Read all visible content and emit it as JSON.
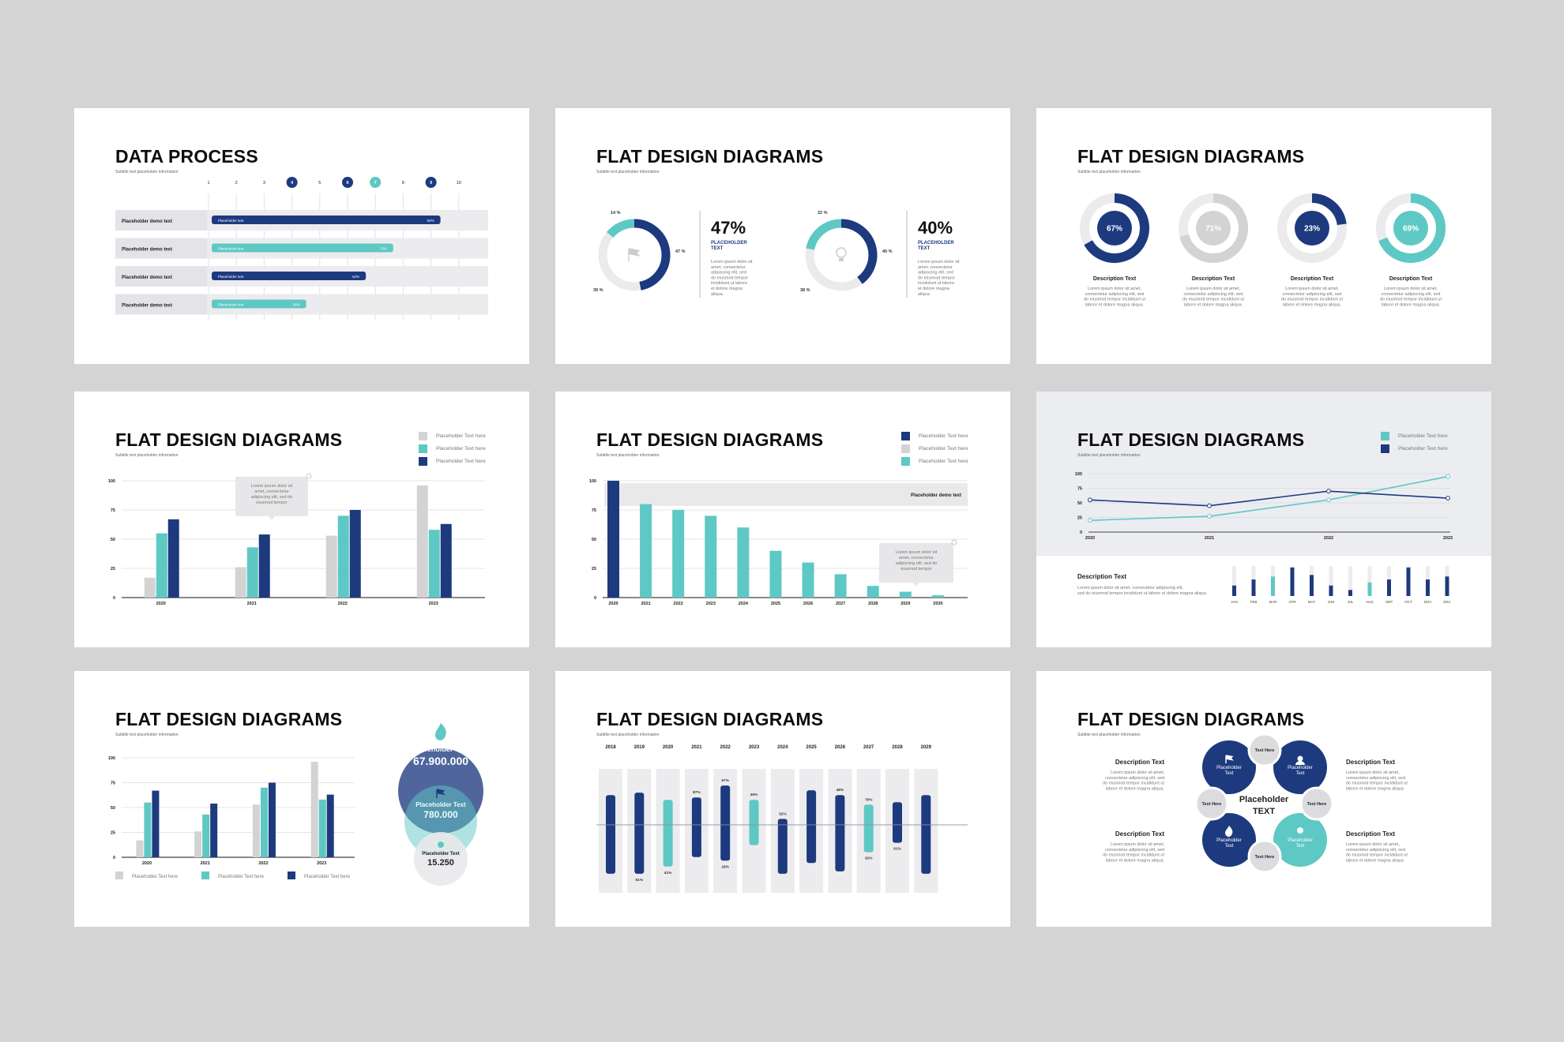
{
  "colors": {
    "navy": "#1d3a7f",
    "teal": "#5ec8c4",
    "gray": "#d3d3d3",
    "track": "#e7e8ec",
    "bg": "#d4d4d4"
  },
  "lorem_short": "Lorem ipsum dolor sit amet, consectetur adipiscing elit, sed do eiusmod tempor incididunt ut labore et dolore magna aliqua.",
  "slides": [
    {
      "title": "DATA PROCESS",
      "subtitle": "Subtitle text placeholder information",
      "steps": [
        "1",
        "2",
        "3",
        "4",
        "5",
        "6",
        "7",
        "8",
        "9",
        "10"
      ],
      "rows": [
        {
          "label": "Placeholder demo text",
          "bar_label": "Placeholder text",
          "pct": "92%",
          "value": 0.92,
          "color": "navy"
        },
        {
          "label": "Placeholder demo text",
          "bar_label": "Placeholder text",
          "pct": "73%",
          "value": 0.73,
          "color": "teal"
        },
        {
          "label": "Placeholder demo text",
          "bar_label": "Placeholder text",
          "pct": "62%",
          "value": 0.62,
          "color": "navy"
        },
        {
          "label": "Placeholder demo text",
          "bar_label": "Placeholder text",
          "pct": "38%",
          "value": 0.38,
          "color": "teal"
        }
      ]
    },
    {
      "title": "FLAT DESIGN DIAGRAMS",
      "subtitle": "Subtitle text placeholder information",
      "donuts": [
        {
          "big": "47%",
          "label1": "PLACEHOLDER",
          "label2": "TEXT",
          "seg_a": "14 %",
          "seg_b": "47 %",
          "seg_c": "39 %",
          "a": 0.14,
          "b": 0.47,
          "c": 0.39,
          "icon": "flag-icon"
        },
        {
          "big": "40%",
          "label1": "PLACEHOLDER",
          "label2": "TEXT",
          "seg_a": "22 %",
          "seg_b": "40 %",
          "seg_c": "38 %",
          "a": 0.22,
          "b": 0.4,
          "c": 0.38,
          "icon": "lightbulb-icon"
        }
      ],
      "desc": "Lorem ipsum dolor sit amet, consectetur adipiscing elit, sed do eiusmod tempor incididunt ut labore et dolore magna aliqua."
    },
    {
      "title": "FLAT DESIGN DIAGRAMS",
      "subtitle": "Subtitle text placeholder information",
      "rings": [
        {
          "pct": "67%",
          "value": 0.67,
          "color": "navy",
          "fill": "navy",
          "label": "Description Text"
        },
        {
          "pct": "71%",
          "value": 0.71,
          "color": "gray",
          "fill": "gray",
          "label": "Description Text"
        },
        {
          "pct": "23%",
          "value": 0.23,
          "color": "navy",
          "fill": "navy",
          "label": "Description Text"
        },
        {
          "pct": "69%",
          "value": 0.69,
          "color": "teal",
          "fill": "teal",
          "label": "Description Text"
        }
      ],
      "desc": "Lorem ipsum dolor sit amet, consectetur adipiscing elit, sed do eiusmod tempor incididunt ut labore et dolore magna aliqua."
    },
    {
      "title": "FLAT DESIGN DIAGRAMS",
      "subtitle": "Subtitle text placeholder information",
      "legend": [
        "Placeholder Text here",
        "Placeholder Text here",
        "Placeholder Text here"
      ],
      "tooltip": [
        "Lorem ipsum dolor sit",
        "amet, consectetur",
        "adipiscing elit, sed do",
        "eiusmod tempor"
      ]
    },
    {
      "title": "FLAT DESIGN DIAGRAMS",
      "subtitle": "Subtitle text placeholder information",
      "legend": [
        "Placeholder Text here",
        "Placeholder Text here",
        "Placeholder Text here"
      ],
      "band_label": "Placeholder demo text",
      "tooltip": [
        "Lorem ipsum dolor sit",
        "amet, consectetur",
        "adipiscing elit, sed do",
        "eiusmod tempor"
      ]
    },
    {
      "title": "FLAT DESIGN DIAGRAMS",
      "subtitle": "Subtitle text placeholder information",
      "legend": [
        "Placeholder Text here",
        "Placeholder Text here"
      ],
      "desc_title": "Description Text",
      "desc": [
        "Lorem ipsum dolor sit amet, consectetur adipiscing elit,",
        "sed do eiusmod tempor incididunt ut labore et dolore magna aliqua."
      ]
    },
    {
      "title": "FLAT DESIGN DIAGRAMS",
      "subtitle": "Subtitle text placeholder information",
      "legend": [
        "Placeholder Text here",
        "Placeholder Text here",
        "Placeholder Text here"
      ],
      "circles": [
        {
          "label": "Placeholder Text",
          "value": "67.900.000"
        },
        {
          "label": "Placeholder Text",
          "value": "780.000"
        },
        {
          "label": "Placeholder Text",
          "value": "15.250"
        }
      ]
    },
    {
      "title": "FLAT DESIGN DIAGRAMS",
      "subtitle": "Subtitle text placeholder information"
    },
    {
      "title": "FLAT DESIGN DIAGRAMS",
      "subtitle": "Subtitle text placeholder information",
      "center1": "Placeholder",
      "center2": "TEXT",
      "desc_title": "Description Text",
      "desc": [
        "Lorem ipsum dolor sit amet,",
        "consectetur adipiscing elit, sed",
        "do eiusmod tempor incididunt ut",
        "labore et dolore magna aliqua."
      ],
      "node_label": [
        "Placeholder",
        "Text"
      ],
      "small_label": "Text Here"
    }
  ],
  "chart_data": [
    {
      "type": "bar",
      "id": "grouped-bars-slide4",
      "categories": [
        "2020",
        "2021",
        "2022",
        "2023"
      ],
      "ylim": [
        0,
        100
      ],
      "yticks": [
        "0",
        "25",
        "50",
        "75",
        "100"
      ],
      "series": [
        {
          "values": [
            17,
            26,
            53,
            96
          ]
        },
        {
          "values": [
            55,
            43,
            70,
            58
          ]
        },
        {
          "values": [
            67,
            54,
            75,
            63
          ]
        }
      ]
    },
    {
      "type": "bar",
      "id": "descending-bars-slide5",
      "categories": [
        "2020",
        "2021",
        "2022",
        "2023",
        "2024",
        "2025",
        "2026",
        "2027",
        "2028",
        "2029",
        "2030"
      ],
      "ylim": [
        0,
        100
      ],
      "yticks": [
        "0",
        "25",
        "50",
        "75",
        "100"
      ],
      "values": [
        100,
        80,
        75,
        70,
        60,
        40,
        30,
        20,
        10,
        5,
        2
      ]
    },
    {
      "type": "line",
      "id": "lines-slide6",
      "x": [
        "2020",
        "2021",
        "2022",
        "2023"
      ],
      "ylim": [
        0,
        100
      ],
      "yticks": [
        "0",
        "25",
        "50",
        "75",
        "100"
      ],
      "series": [
        {
          "values": [
            20,
            27,
            55,
            95
          ]
        },
        {
          "values": [
            55,
            45,
            70,
            58
          ]
        }
      ],
      "months": [
        "JAN",
        "FEB",
        "MAR",
        "APR",
        "MAY",
        "JUN",
        "JUL",
        "AUG",
        "SEP",
        "OCT",
        "NOV",
        "DEC"
      ],
      "month_values": [
        0.35,
        0.55,
        0.65,
        0.95,
        0.7,
        0.35,
        0.2,
        0.45,
        0.55,
        0.95,
        0.55,
        0.65
      ],
      "month_colors": [
        "navy",
        "navy",
        "teal",
        "navy",
        "navy",
        "navy",
        "navy",
        "teal",
        "navy",
        "navy",
        "navy",
        "navy"
      ]
    },
    {
      "type": "bar",
      "id": "grouped-bars-slide7",
      "categories": [
        "2020",
        "2021",
        "2022",
        "2023"
      ],
      "ylim": [
        0,
        100
      ],
      "yticks": [
        "0",
        "25",
        "50",
        "75",
        "100"
      ],
      "series": [
        {
          "values": [
            17,
            26,
            53,
            96
          ]
        },
        {
          "values": [
            55,
            43,
            70,
            58
          ]
        },
        {
          "values": [
            67,
            54,
            75,
            63
          ]
        }
      ]
    },
    {
      "type": "bar",
      "id": "floating-bars-slide8",
      "categories": [
        "2018",
        "2019",
        "2020",
        "2021",
        "2022",
        "2023",
        "2024",
        "2025",
        "2026",
        "2027",
        "2028",
        "2029"
      ],
      "ranges": [
        [
          20,
          86
        ],
        [
          18,
          86
        ],
        [
          24,
          80
        ],
        [
          22,
          72
        ],
        [
          12,
          75
        ],
        [
          24,
          62
        ],
        [
          40,
          86
        ],
        [
          16,
          77
        ],
        [
          20,
          84
        ],
        [
          28,
          68
        ],
        [
          26,
          60
        ],
        [
          20,
          86
        ]
      ],
      "colors": [
        "navy",
        "navy",
        "teal",
        "navy",
        "navy",
        "teal",
        "navy",
        "navy",
        "navy",
        "teal",
        "navy",
        "navy"
      ],
      "labels": [
        {
          "i": 1,
          "text": "51%",
          "pos": "bottom"
        },
        {
          "i": 2,
          "text": "41%",
          "pos": "bottom"
        },
        {
          "i": 3,
          "text": "87%",
          "pos": "top"
        },
        {
          "i": 4,
          "text": "67%",
          "pos": "top"
        },
        {
          "i": 4,
          "text": "18%",
          "pos": "bottom"
        },
        {
          "i": 5,
          "text": "49%",
          "pos": "top"
        },
        {
          "i": 6,
          "text": "32%",
          "pos": "top"
        },
        {
          "i": 8,
          "text": "48%",
          "pos": "top"
        },
        {
          "i": 9,
          "text": "79%",
          "pos": "top"
        },
        {
          "i": 9,
          "text": "32%",
          "pos": "bottom"
        },
        {
          "i": 10,
          "text": "61%",
          "pos": "bottom"
        }
      ]
    }
  ]
}
